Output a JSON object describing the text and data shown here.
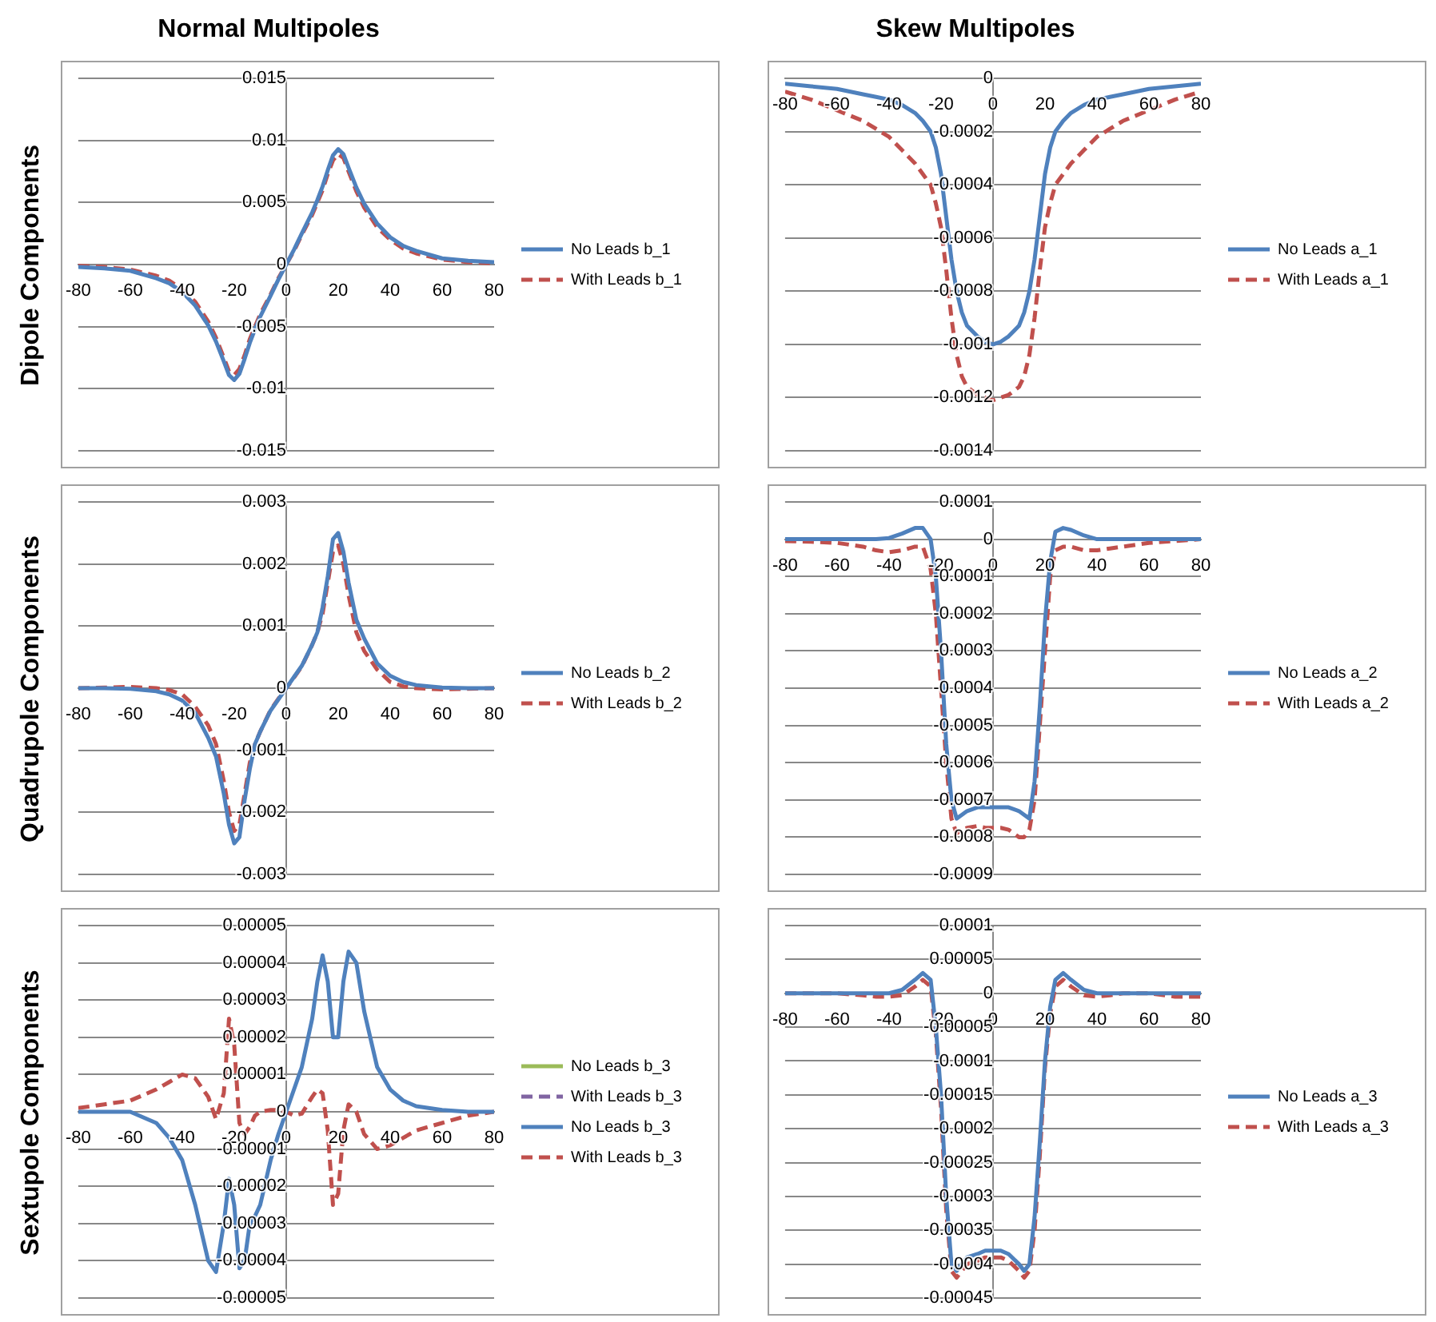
{
  "chart_data": [
    {
      "type": "line",
      "title": "Normal Multipoles",
      "ylabel": "Dipole Components",
      "legend": "right",
      "grid": "y",
      "x": [
        -80,
        -70,
        -60,
        -50,
        -45,
        -40,
        -35,
        -30,
        -27,
        -24,
        -22,
        -20,
        -18,
        -16,
        -14,
        -12,
        -10,
        -6,
        -3,
        0,
        3,
        6,
        10,
        12,
        14,
        16,
        18,
        20,
        22,
        24,
        27,
        30,
        35,
        40,
        45,
        50,
        60,
        70,
        80
      ],
      "xlim": [
        -80,
        80
      ],
      "xticks": [
        -80,
        -60,
        -40,
        -20,
        0,
        20,
        40,
        60,
        80
      ],
      "ylim": [
        -0.015,
        0.015
      ],
      "yticks": [
        -0.015,
        -0.01,
        -0.005,
        0,
        0.005,
        0.01,
        0.015
      ],
      "series": [
        {
          "name": "No Leads b_1",
          "color": "#4f81bd",
          "line_style": "solid",
          "values": [
            -0.0002,
            -0.0003,
            -0.0005,
            -0.0011,
            -0.0015,
            -0.0022,
            -0.0033,
            -0.0049,
            -0.0062,
            -0.0078,
            -0.0089,
            -0.0093,
            -0.0088,
            -0.0076,
            -0.0063,
            -0.0052,
            -0.0042,
            -0.0025,
            -0.0012,
            0,
            0.0012,
            0.0025,
            0.0042,
            0.0052,
            0.0063,
            0.0076,
            0.0088,
            0.0093,
            0.0089,
            0.0078,
            0.0062,
            0.0049,
            0.0033,
            0.0022,
            0.0015,
            0.0011,
            0.0005,
            0.0003,
            0.0002
          ]
        },
        {
          "name": "With Leads b_1",
          "color": "#c0504d",
          "line_style": "dashed",
          "values": [
            -0.0001,
            -0.0002,
            -0.0004,
            -0.0009,
            -0.0013,
            -0.002,
            -0.003,
            -0.0046,
            -0.0059,
            -0.0075,
            -0.0086,
            -0.0089,
            -0.0084,
            -0.0073,
            -0.006,
            -0.005,
            -0.004,
            -0.0024,
            -0.0011,
            0,
            0.0011,
            0.0024,
            0.004,
            0.005,
            0.006,
            0.0073,
            0.0084,
            0.0089,
            0.0086,
            0.0075,
            0.0059,
            0.0046,
            0.003,
            0.002,
            0.0013,
            0.0009,
            0.0004,
            0.0002,
            0.0001
          ]
        }
      ]
    },
    {
      "type": "line",
      "title": "Skew Multipoles",
      "legend": "right",
      "grid": "y",
      "x": [
        -80,
        -70,
        -60,
        -50,
        -45,
        -40,
        -35,
        -30,
        -27,
        -24,
        -22,
        -20,
        -18,
        -16,
        -14,
        -12,
        -10,
        -6,
        -3,
        0,
        3,
        6,
        10,
        12,
        14,
        16,
        18,
        20,
        22,
        24,
        27,
        30,
        35,
        40,
        45,
        50,
        60,
        70,
        80
      ],
      "xlim": [
        -80,
        80
      ],
      "xticks": [
        -80,
        -60,
        -40,
        -20,
        0,
        20,
        40,
        60,
        80
      ],
      "ylim": [
        -0.0014,
        0
      ],
      "yticks": [
        -0.0014,
        -0.0012,
        -0.001,
        -0.0008,
        -0.0006,
        -0.0004,
        -0.0002,
        0
      ],
      "series": [
        {
          "name": "No Leads a_1",
          "color": "#4f81bd",
          "line_style": "solid",
          "values": [
            -2e-05,
            -3e-05,
            -4e-05,
            -6e-05,
            -7e-05,
            -8e-05,
            -0.0001,
            -0.00013,
            -0.00016,
            -0.0002,
            -0.00026,
            -0.00036,
            -0.00052,
            -0.00068,
            -0.0008,
            -0.00088,
            -0.00093,
            -0.00097,
            -0.00099,
            -0.001,
            -0.00099,
            -0.00097,
            -0.00093,
            -0.00088,
            -0.0008,
            -0.00068,
            -0.00052,
            -0.00036,
            -0.00026,
            -0.0002,
            -0.00016,
            -0.00013,
            -0.0001,
            -8e-05,
            -7e-05,
            -6e-05,
            -4e-05,
            -3e-05,
            -2e-05
          ]
        },
        {
          "name": "With Leads a_1",
          "color": "#c0504d",
          "line_style": "dashed",
          "values": [
            -5e-05,
            -8e-05,
            -0.00012,
            -0.00016,
            -0.00019,
            -0.00022,
            -0.00027,
            -0.00032,
            -0.00036,
            -0.0004,
            -0.00047,
            -0.00056,
            -0.00072,
            -0.0009,
            -0.00104,
            -0.00112,
            -0.00116,
            -0.00119,
            -0.0012,
            -0.00121,
            -0.0012,
            -0.00119,
            -0.00116,
            -0.00112,
            -0.00104,
            -0.0009,
            -0.00072,
            -0.00056,
            -0.00047,
            -0.0004,
            -0.00036,
            -0.00032,
            -0.00027,
            -0.00022,
            -0.00019,
            -0.00016,
            -0.00012,
            -8e-05,
            -5e-05
          ]
        }
      ]
    },
    {
      "type": "line",
      "ylabel": "Quadrupole Components",
      "legend": "right",
      "grid": "y",
      "x": [
        -80,
        -70,
        -60,
        -50,
        -45,
        -40,
        -35,
        -30,
        -27,
        -24,
        -22,
        -20,
        -18,
        -16,
        -14,
        -12,
        -10,
        -6,
        -3,
        0,
        3,
        6,
        10,
        12,
        14,
        16,
        18,
        20,
        22,
        24,
        27,
        30,
        35,
        40,
        45,
        50,
        60,
        70,
        80
      ],
      "xlim": [
        -80,
        80
      ],
      "xticks": [
        -80,
        -60,
        -40,
        -20,
        0,
        20,
        40,
        60,
        80
      ],
      "ylim": [
        -0.003,
        0.003
      ],
      "yticks": [
        -0.003,
        -0.002,
        -0.001,
        0,
        0.001,
        0.002,
        0.003
      ],
      "series": [
        {
          "name": "No Leads b_2",
          "color": "#4f81bd",
          "line_style": "solid",
          "values": [
            0,
            0,
            -1e-05,
            -5e-05,
            -0.0001,
            -0.0002,
            -0.0004,
            -0.0008,
            -0.0011,
            -0.0017,
            -0.0022,
            -0.0025,
            -0.0024,
            -0.0018,
            -0.0013,
            -0.0009,
            -0.0007,
            -0.00036,
            -0.00018,
            0,
            0.00018,
            0.00036,
            0.0007,
            0.0009,
            0.0013,
            0.0018,
            0.0024,
            0.0025,
            0.0022,
            0.0017,
            0.0011,
            0.0008,
            0.0004,
            0.0002,
            0.0001,
            5e-05,
            1e-05,
            0,
            0
          ]
        },
        {
          "name": "With Leads b_2",
          "color": "#c0504d",
          "line_style": "dashed",
          "values": [
            0,
            1e-05,
            2e-05,
            0,
            -3e-05,
            -0.0001,
            -0.0003,
            -0.0006,
            -0.0009,
            -0.0015,
            -0.002,
            -0.0023,
            -0.0022,
            -0.0017,
            -0.0012,
            -0.0009,
            -0.0007,
            -0.00035,
            -0.00017,
            0,
            0.00017,
            0.00035,
            0.0007,
            0.0009,
            0.0012,
            0.0017,
            0.0022,
            0.0023,
            0.002,
            0.0015,
            0.0009,
            0.0006,
            0.0003,
            0.0001,
            3e-05,
            0,
            -2e-05,
            -1e-05,
            0
          ]
        }
      ]
    },
    {
      "type": "line",
      "legend": "right",
      "grid": "y",
      "x": [
        -80,
        -70,
        -60,
        -50,
        -45,
        -40,
        -35,
        -30,
        -27,
        -24,
        -22,
        -20,
        -18,
        -16,
        -14,
        -12,
        -10,
        -6,
        -3,
        0,
        3,
        6,
        10,
        12,
        14,
        16,
        18,
        20,
        22,
        24,
        27,
        30,
        35,
        40,
        45,
        50,
        60,
        70,
        80
      ],
      "xlim": [
        -80,
        80
      ],
      "xticks": [
        -80,
        -60,
        -40,
        -20,
        0,
        20,
        40,
        60,
        80
      ],
      "ylim": [
        -0.0009,
        0.0001
      ],
      "yticks": [
        -0.0009,
        -0.0008,
        -0.0007,
        -0.0006,
        -0.0005,
        -0.0004,
        -0.0003,
        -0.0002,
        -0.0001,
        0,
        0.0001
      ],
      "series": [
        {
          "name": "No Leads a_2",
          "color": "#4f81bd",
          "line_style": "solid",
          "values": [
            0,
            0,
            0,
            0,
            0,
            3e-06,
            1.5e-05,
            3e-05,
            3e-05,
            0,
            -0.0001,
            -0.0003,
            -0.00055,
            -0.0007,
            -0.00075,
            -0.00074,
            -0.00073,
            -0.00072,
            -0.00072,
            -0.00072,
            -0.00072,
            -0.00072,
            -0.00073,
            -0.00074,
            -0.00075,
            -0.00065,
            -0.00045,
            -0.00022,
            -6e-05,
            2e-05,
            3e-05,
            2.5e-05,
            1e-05,
            0,
            0,
            0,
            0,
            0,
            0
          ]
        },
        {
          "name": "With Leads a_2",
          "color": "#c0504d",
          "line_style": "dashed",
          "values": [
            -5e-06,
            -7e-06,
            -1e-05,
            -2e-05,
            -3e-05,
            -3.5e-05,
            -3e-05,
            -2e-05,
            -2e-05,
            -8e-05,
            -0.0002,
            -0.0004,
            -0.0006,
            -0.00075,
            -0.00079,
            -0.00078,
            -0.000775,
            -0.00077,
            -0.000775,
            -0.000775,
            -0.000775,
            -0.00078,
            -0.0008,
            -0.0008,
            -0.00078,
            -0.0007,
            -0.0005,
            -0.0003,
            -0.0001,
            -3e-05,
            -2e-05,
            -2e-05,
            -3e-05,
            -3e-05,
            -2.5e-05,
            -2e-05,
            -1e-05,
            -5e-06,
            0
          ]
        }
      ]
    },
    {
      "type": "line",
      "ylabel": "Sextupole Components",
      "legend": "right",
      "grid": "y",
      "x": [
        -80,
        -70,
        -60,
        -50,
        -45,
        -40,
        -35,
        -30,
        -27,
        -24,
        -22,
        -20,
        -18,
        -16,
        -14,
        -12,
        -10,
        -6,
        -3,
        0,
        3,
        6,
        10,
        12,
        14,
        16,
        18,
        20,
        22,
        24,
        27,
        30,
        35,
        40,
        45,
        50,
        60,
        70,
        80
      ],
      "xlim": [
        -80,
        80
      ],
      "xticks": [
        -80,
        -60,
        -40,
        -20,
        0,
        20,
        40,
        60,
        80
      ],
      "ylim": [
        -5e-05,
        5e-05
      ],
      "yticks": [
        {
          "value": -5e-05,
          "label": "-0.00005"
        },
        {
          "value": -4e-05,
          "label": "-0.00004"
        },
        {
          "value": -3e-05,
          "label": "-0.00003"
        },
        {
          "value": -2e-05,
          "label": "-0.00002"
        },
        {
          "value": -1e-05,
          "label": "-0.00001"
        },
        0,
        {
          "value": 1e-05,
          "label": "0.00001"
        },
        {
          "value": 2e-05,
          "label": "0.00002"
        },
        {
          "value": 3e-05,
          "label": "0.00003"
        },
        {
          "value": 4e-05,
          "label": "0.00004"
        },
        {
          "value": 5e-05,
          "label": "0.00005"
        }
      ],
      "series": [
        {
          "name": "No Leads b_3",
          "color": "#9bbb59",
          "line_style": "solid",
          "values": [
            null,
            null,
            null,
            null,
            null,
            null,
            null,
            null,
            null,
            null,
            null,
            null,
            null,
            null,
            null,
            null,
            null,
            null,
            null,
            null,
            null,
            null,
            null,
            null,
            null,
            null,
            null,
            null,
            null,
            null,
            null,
            null,
            null,
            null,
            null,
            null,
            null,
            null,
            null
          ]
        },
        {
          "name": "With Leads b_3",
          "color": "#8064a2",
          "line_style": "dashed",
          "values": [
            null,
            null,
            null,
            null,
            null,
            null,
            null,
            null,
            null,
            null,
            null,
            null,
            null,
            null,
            null,
            null,
            null,
            null,
            null,
            null,
            null,
            null,
            null,
            null,
            null,
            null,
            null,
            null,
            null,
            null,
            null,
            null,
            null,
            null,
            null,
            null,
            null,
            null,
            null
          ]
        },
        {
          "name": "No Leads b_3",
          "color": "#4f81bd",
          "line_style": "solid",
          "values": [
            0,
            0,
            0,
            -3e-06,
            -7e-06,
            -1.3e-05,
            -2.5e-05,
            -4e-05,
            -4.3e-05,
            -3e-05,
            -1.8e-05,
            -2.5e-05,
            -4.2e-05,
            -4e-05,
            -3e-05,
            -2.8e-05,
            -2.5e-05,
            -1.3e-05,
            -6e-06,
            0,
            6e-06,
            1.2e-05,
            2.5e-05,
            3.5e-05,
            4.2e-05,
            3.5e-05,
            2e-05,
            2e-05,
            3.5e-05,
            4.3e-05,
            4e-05,
            2.7e-05,
            1.2e-05,
            6e-06,
            3e-06,
            1.5e-06,
            5e-07,
            0,
            0
          ]
        },
        {
          "name": "With Leads b_3",
          "color": "#c0504d",
          "line_style": "dashed",
          "values": [
            1e-06,
            2e-06,
            3e-06,
            6e-06,
            8e-06,
            1e-05,
            9e-06,
            4e-06,
            -2e-06,
            5e-06,
            2.5e-05,
            1.8e-05,
            -3e-06,
            -6e-06,
            -4e-06,
            -1e-06,
            0,
            5e-07,
            5e-07,
            0,
            -1e-06,
            -5e-07,
            4e-06,
            6e-06,
            5e-06,
            -5e-06,
            -2.5e-05,
            -2.2e-05,
            -5e-06,
            2e-06,
            0,
            -6e-06,
            -1e-05,
            -9e-06,
            -7e-06,
            -5e-06,
            -3e-06,
            -1e-06,
            0
          ]
        }
      ]
    },
    {
      "type": "line",
      "legend": "right",
      "grid": "y",
      "x": [
        -80,
        -70,
        -60,
        -50,
        -45,
        -40,
        -35,
        -30,
        -27,
        -24,
        -22,
        -20,
        -18,
        -16,
        -14,
        -12,
        -10,
        -6,
        -3,
        0,
        3,
        6,
        10,
        12,
        14,
        16,
        18,
        20,
        22,
        24,
        27,
        30,
        35,
        40,
        45,
        50,
        60,
        70,
        80
      ],
      "xlim": [
        -80,
        80
      ],
      "xticks": [
        -80,
        -60,
        -40,
        -20,
        0,
        20,
        40,
        60,
        80
      ],
      "ylim": [
        -0.00045,
        0.0001
      ],
      "yticks": [
        -0.00045,
        -0.0004,
        -0.00035,
        -0.0003,
        -0.00025,
        -0.0002,
        -0.00015,
        -0.0001,
        {
          "value": -5e-05,
          "label": "-0.00005"
        },
        0,
        {
          "value": 5e-05,
          "label": "0.00005"
        },
        0.0001
      ],
      "series": [
        {
          "name": "No Leads a_3",
          "color": "#4f81bd",
          "line_style": "solid",
          "values": [
            0,
            0,
            0,
            0,
            0,
            0,
            5e-06,
            2e-05,
            3e-05,
            2e-05,
            -5e-05,
            -0.00015,
            -0.0003,
            -0.0004,
            -0.00041,
            -0.0004,
            -0.00039,
            -0.000385,
            -0.00038,
            -0.00038,
            -0.00038,
            -0.000385,
            -0.0004,
            -0.00041,
            -0.0004,
            -0.00033,
            -0.00022,
            -0.0001,
            -2e-05,
            2e-05,
            3e-05,
            2e-05,
            5e-06,
            0,
            0,
            0,
            0,
            0,
            0
          ]
        },
        {
          "name": "With Leads a_3",
          "color": "#c0504d",
          "line_style": "dashed",
          "values": [
            0,
            0,
            0,
            -3e-06,
            -5e-06,
            -5e-06,
            -3e-06,
            1e-05,
            2e-05,
            1e-05,
            -6e-05,
            -0.00017,
            -0.00032,
            -0.00041,
            -0.00042,
            -0.00041,
            -0.0004,
            -0.000395,
            -0.00039,
            -0.00039,
            -0.00039,
            -0.000395,
            -0.00041,
            -0.00042,
            -0.00041,
            -0.00035,
            -0.00024,
            -0.00011,
            -3e-05,
            1e-05,
            2e-05,
            1e-05,
            -3e-06,
            -5e-06,
            -3e-06,
            0,
            0,
            -5e-06,
            -5e-06
          ]
        }
      ]
    }
  ]
}
